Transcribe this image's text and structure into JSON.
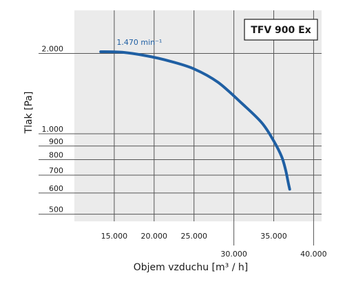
{
  "chart_data": {
    "type": "line",
    "title": "",
    "model_label": "TFV 900 Ex",
    "xlabel": "Objem vzduchu [m³ / h]",
    "ylabel": "Tlak [Pa]",
    "y_scale": "log",
    "xlim": [
      10000,
      41000
    ],
    "ylim": [
      470,
      2900
    ],
    "grid": true,
    "x_ticks": [
      {
        "value": 15000,
        "label": "15.000"
      },
      {
        "value": 20000,
        "label": "20.000"
      },
      {
        "value": 25000,
        "label": "25.000"
      },
      {
        "value": 30000,
        "label": "30.000"
      },
      {
        "value": 35000,
        "label": "35.000"
      },
      {
        "value": 40000,
        "label": "40.000"
      }
    ],
    "y_ticks": [
      {
        "value": 500,
        "label": "500"
      },
      {
        "value": 600,
        "label": "600"
      },
      {
        "value": 700,
        "label": "700"
      },
      {
        "value": 800,
        "label": "800"
      },
      {
        "value": 900,
        "label": "900"
      },
      {
        "value": 1000,
        "label": "1.000"
      },
      {
        "value": 2000,
        "label": "2.000"
      }
    ],
    "series": [
      {
        "name": "1.470 min⁻¹",
        "color": "#1f5fa3",
        "x": [
          13300,
          16000,
          19000,
          22000,
          25000,
          28000,
          31000,
          33500,
          35000,
          36000,
          36500,
          36800,
          37000
        ],
        "y": [
          2030,
          2020,
          1960,
          1870,
          1750,
          1560,
          1300,
          1100,
          940,
          820,
          730,
          660,
          620
        ]
      }
    ]
  }
}
